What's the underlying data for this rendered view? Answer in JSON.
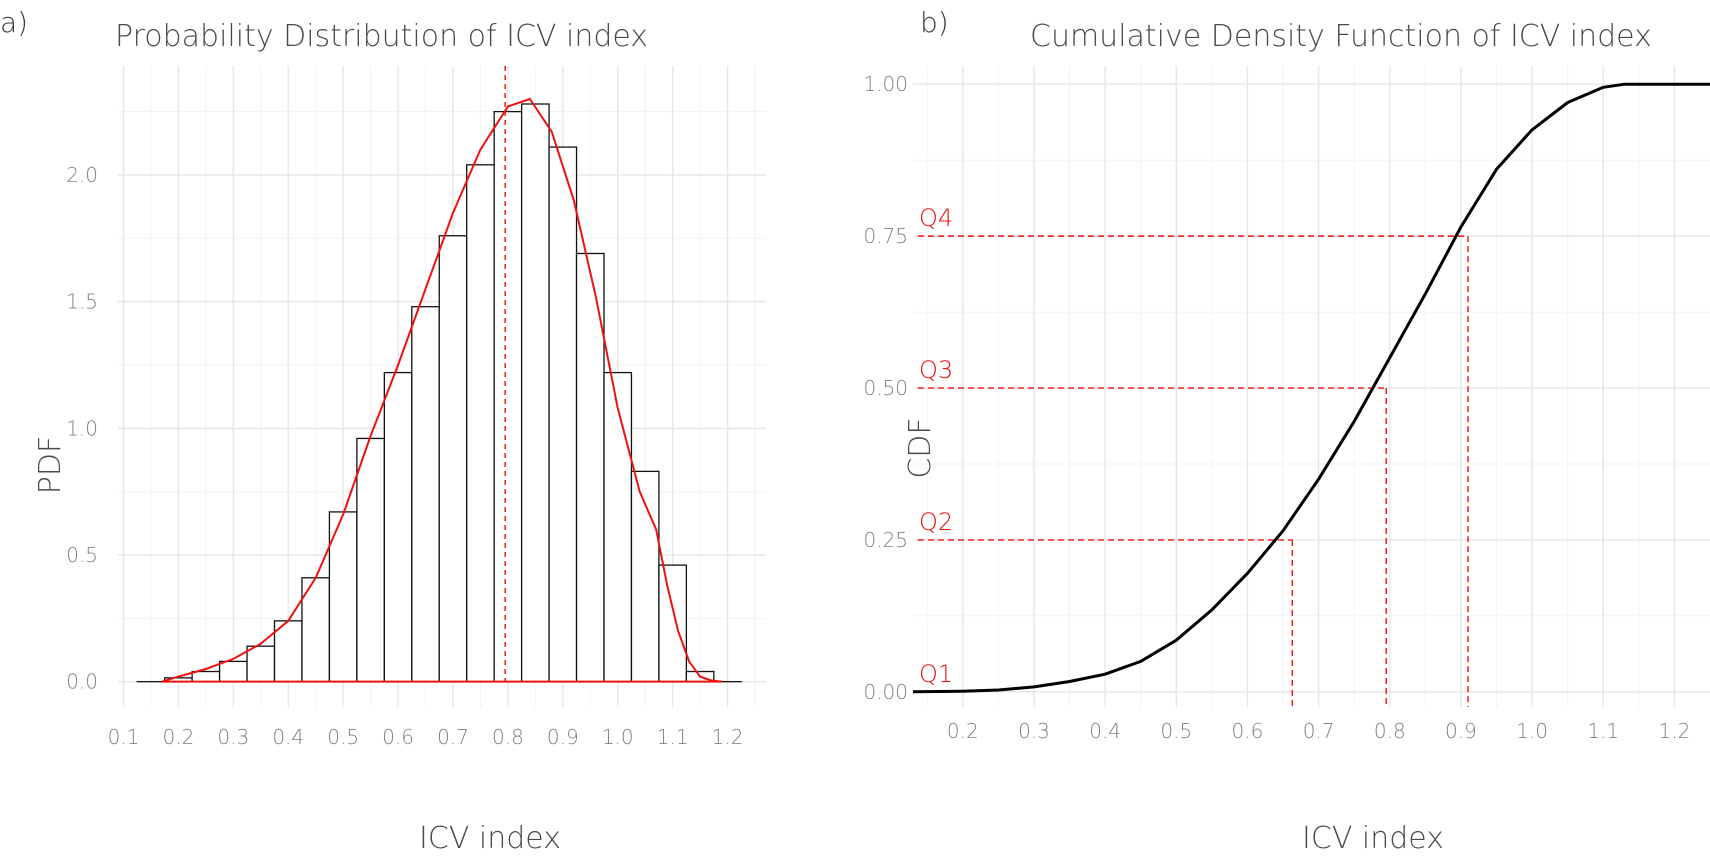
{
  "colors": {
    "accent": "#ee1111",
    "bar_outline": "#111111",
    "cdf_line": "#000000"
  },
  "chart_data": [
    {
      "type": "bar",
      "panel_tag": "a)",
      "title": "Probability Distribution of ICV index",
      "xlabel": "ICV index",
      "ylabel": "PDF",
      "xlim": [
        0.09,
        1.27
      ],
      "ylim": [
        -0.1,
        2.43
      ],
      "x_ticks": [
        "0.1",
        "0.2",
        "0.3",
        "0.4",
        "0.5",
        "0.6",
        "0.7",
        "0.8",
        "0.9",
        "1.0",
        "1.1",
        "1.2"
      ],
      "y_ticks": [
        "0.0",
        "0.5",
        "1.0",
        "1.5",
        "2.0"
      ],
      "grid": true,
      "bin_width": 0.05,
      "bin_centers": [
        0.15,
        0.2,
        0.25,
        0.3,
        0.35,
        0.4,
        0.45,
        0.5,
        0.55,
        0.6,
        0.65,
        0.7,
        0.75,
        0.8,
        0.85,
        0.9,
        0.95,
        1.0,
        1.05,
        1.1,
        1.15,
        1.2
      ],
      "values": [
        0.0,
        0.015,
        0.04,
        0.08,
        0.14,
        0.24,
        0.41,
        0.67,
        0.96,
        1.22,
        1.48,
        1.76,
        2.04,
        2.25,
        2.28,
        2.11,
        1.69,
        1.22,
        0.83,
        0.46,
        0.04,
        0.0
      ],
      "density_curve": {
        "x": [
          0.17,
          0.2,
          0.25,
          0.3,
          0.35,
          0.4,
          0.45,
          0.5,
          0.55,
          0.6,
          0.65,
          0.7,
          0.75,
          0.8,
          0.84,
          0.88,
          0.92,
          0.96,
          1.0,
          1.04,
          1.07,
          1.09,
          1.11,
          1.13,
          1.15,
          1.17,
          1.19
        ],
        "y": [
          0.0,
          0.02,
          0.05,
          0.09,
          0.15,
          0.24,
          0.41,
          0.66,
          0.97,
          1.25,
          1.55,
          1.85,
          2.1,
          2.27,
          2.3,
          2.17,
          1.9,
          1.52,
          1.08,
          0.75,
          0.6,
          0.38,
          0.2,
          0.08,
          0.02,
          0.005,
          0.0
        ]
      },
      "median_line_x": 0.795
    },
    {
      "type": "line",
      "panel_tag": "b)",
      "title": "Cumulative Density Function of ICV index",
      "xlabel": "ICV index",
      "ylabel": "CDF",
      "xlim": [
        0.13,
        1.25
      ],
      "ylim": [
        -0.025,
        1.03
      ],
      "x_ticks": [
        "0.2",
        "0.3",
        "0.4",
        "0.5",
        "0.6",
        "0.7",
        "0.8",
        "0.9",
        "1.0",
        "1.1",
        "1.2"
      ],
      "y_ticks": [
        "0.00",
        "0.25",
        "0.50",
        "0.75",
        "1.00"
      ],
      "grid": true,
      "series": [
        {
          "x": [
            0.13,
            0.2,
            0.25,
            0.3,
            0.35,
            0.4,
            0.45,
            0.5,
            0.55,
            0.6,
            0.65,
            0.7,
            0.75,
            0.8,
            0.85,
            0.9,
            0.95,
            1.0,
            1.05,
            1.1,
            1.13,
            1.25
          ],
          "y": [
            0.0,
            0.001,
            0.003,
            0.008,
            0.017,
            0.029,
            0.05,
            0.085,
            0.135,
            0.195,
            0.265,
            0.35,
            0.445,
            0.55,
            0.655,
            0.765,
            0.86,
            0.925,
            0.97,
            0.995,
            1.0,
            1.0
          ]
        }
      ],
      "quartiles": [
        {
          "label": "Q1",
          "y": 0.0,
          "x": null
        },
        {
          "label": "Q2",
          "y": 0.25,
          "x": 0.663
        },
        {
          "label": "Q3",
          "y": 0.5,
          "x": 0.795
        },
        {
          "label": "Q4",
          "y": 0.75,
          "x": 0.91
        }
      ]
    }
  ]
}
